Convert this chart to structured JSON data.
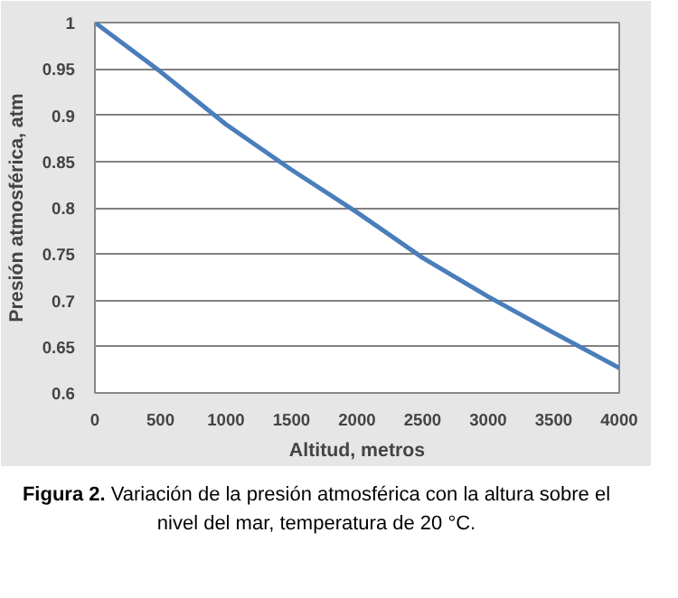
{
  "chart_data": {
    "type": "line",
    "xlabel": "Altitud, metros",
    "ylabel": "Presión atmosférica, atm",
    "x": [
      0,
      500,
      1000,
      1500,
      2000,
      2500,
      3000,
      3500,
      4000
    ],
    "series": [
      {
        "color": "#4a7ebb",
        "values": [
          1,
          0.947,
          0.89,
          0.841,
          0.795,
          0.746,
          0.704,
          0.665,
          0.627
        ]
      }
    ],
    "xlim": [
      0,
      4000
    ],
    "xticks": [
      0,
      500,
      1000,
      1500,
      2000,
      2500,
      3000,
      3500,
      4000
    ],
    "ylim": [
      0.6,
      1
    ],
    "yticks": [
      0.6,
      0.65,
      0.7,
      0.75,
      0.8,
      0.85,
      0.9,
      0.95,
      1
    ],
    "grid": "y",
    "marker": "none",
    "line_style": "solid",
    "annotations": [
      "Figura 2. Variación de la presión atmosférica con la altura sobre el nivel del mar, temperatura de 20 °C."
    ]
  }
}
